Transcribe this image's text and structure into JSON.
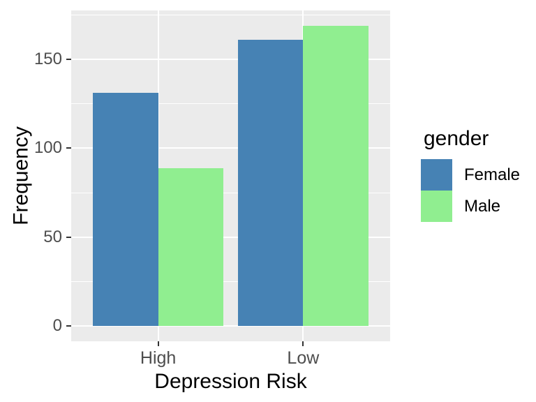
{
  "figure": {
    "background": "#FFFFFF",
    "panel_background": "#EBEBEB",
    "grid_color": "#FFFFFF",
    "tick_color": "#333333",
    "axis_text_color": "#4D4D4D",
    "title_color": "#000000"
  },
  "chart_data": {
    "type": "bar",
    "grouped": true,
    "title": "",
    "xlabel": "Depression Risk",
    "ylabel": "Frequency",
    "categories": [
      "High",
      "Low"
    ],
    "series": [
      {
        "name": "Female",
        "color": "#4682B4",
        "values": [
          131,
          161
        ]
      },
      {
        "name": "Male",
        "color": "#90EE90",
        "values": [
          89,
          169
        ]
      }
    ],
    "yticks": [
      0,
      50,
      100,
      150
    ],
    "yticks_minor": [
      25,
      75,
      125,
      175
    ],
    "ylim": [
      -8.45,
      177.45
    ],
    "grid": true,
    "legend_position": "right"
  },
  "legend": {
    "title": "gender",
    "items": [
      {
        "label": "Female",
        "color": "#4682B4"
      },
      {
        "label": "Male",
        "color": "#90EE90"
      }
    ]
  }
}
